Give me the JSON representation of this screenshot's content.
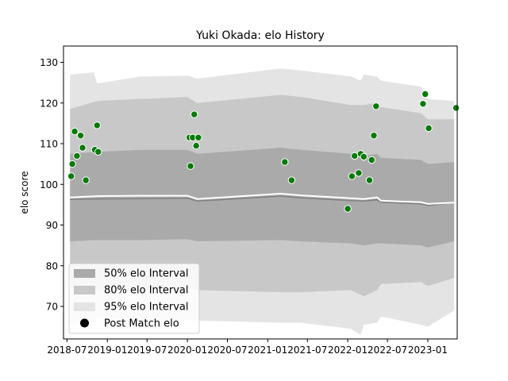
{
  "chart_data": {
    "type": "line",
    "title": "Yuki Okada: elo History",
    "xlabel": "",
    "ylabel": "elo score",
    "xlim": [
      "2018-06-15",
      "2023-05-15"
    ],
    "ylim": [
      62,
      134
    ],
    "x_ticks": [
      "2018-07",
      "2019-01",
      "2019-07",
      "2020-01",
      "2020-07",
      "2021-01",
      "2021-07",
      "2022-01",
      "2022-07",
      "2023-01"
    ],
    "y_ticks": [
      70,
      80,
      90,
      100,
      110,
      120,
      130
    ],
    "grid": false,
    "legend": {
      "placement": "lower-left",
      "entries": [
        {
          "label": "50% elo Interval",
          "color": "#aaaaaa"
        },
        {
          "label": "80% elo Interval",
          "color": "#c8c8c8"
        },
        {
          "label": "95% elo Interval",
          "color": "#e4e4e4"
        },
        {
          "label": "Post Match elo",
          "color": "#000000"
        }
      ]
    },
    "colors": {
      "band_50": "#aaaaaa",
      "band_80": "#c8c8c8",
      "band_95": "#e4e4e4",
      "mean_line": "#808080",
      "median_line": "#ffffff",
      "point_fill": "#007a00",
      "point_edge": "#ffffff"
    },
    "series": [
      {
        "name": "mean",
        "x": [
          "2018-07-15",
          "2018-11-15",
          "2019-06-01",
          "2020-01-01",
          "2020-02-15",
          "2021-03-01",
          "2021-06-01",
          "2022-01-15",
          "2022-03-15",
          "2022-05-15",
          "2022-06-01",
          "2022-12-01",
          "2023-01-01",
          "2023-05-01"
        ],
        "values": [
          96.3,
          96.4,
          96.5,
          96.6,
          95.9,
          97.1,
          96.7,
          96.0,
          95.9,
          96.2,
          95.6,
          95.2,
          94.8,
          95.5
        ]
      },
      {
        "name": "median",
        "x": [
          "2018-07-15",
          "2018-11-15",
          "2019-06-01",
          "2020-01-01",
          "2020-02-15",
          "2021-03-01",
          "2021-06-01",
          "2022-01-15",
          "2022-03-15",
          "2022-05-15",
          "2022-06-01",
          "2022-12-01",
          "2023-01-01",
          "2023-05-01"
        ],
        "values": [
          96.8,
          97.1,
          97.2,
          97.2,
          96.4,
          97.7,
          97.3,
          96.6,
          96.4,
          96.8,
          96.0,
          95.6,
          95.2,
          95.5
        ]
      }
    ],
    "bands": [
      {
        "level": "95%",
        "x": [
          "2018-07-15",
          "2018-11-01",
          "2018-11-15",
          "2019-06-01",
          "2020-01-01",
          "2020-02-15",
          "2021-03-01",
          "2021-06-01",
          "2022-01-15",
          "2022-03-01",
          "2022-03-15",
          "2022-05-15",
          "2022-06-01",
          "2022-12-01",
          "2023-01-01",
          "2023-05-01"
        ],
        "upper": [
          127.0,
          127.5,
          124.8,
          126.5,
          126.7,
          126.0,
          128.5,
          128.0,
          126.5,
          125.5,
          127.0,
          126.5,
          125.5,
          124.0,
          121.0,
          120.5
        ],
        "lower": [
          65.5,
          66.0,
          67.5,
          66.5,
          66.5,
          66.5,
          66.0,
          66.0,
          64.5,
          63.0,
          65.5,
          66.0,
          67.5,
          65.5,
          65.0,
          69.0
        ]
      },
      {
        "level": "80%",
        "x": [
          "2018-07-15",
          "2018-11-15",
          "2019-06-01",
          "2020-01-01",
          "2020-02-15",
          "2021-03-01",
          "2021-06-01",
          "2022-01-15",
          "2022-03-15",
          "2022-05-15",
          "2022-06-01",
          "2022-12-01",
          "2023-01-01",
          "2023-05-01"
        ],
        "upper": [
          118.5,
          120.5,
          121.0,
          121.5,
          120.0,
          122.0,
          121.5,
          119.5,
          119.5,
          120.0,
          119.0,
          117.5,
          116.0,
          116.0
        ],
        "lower": [
          75.0,
          74.0,
          74.0,
          74.5,
          74.0,
          73.5,
          73.5,
          74.0,
          72.5,
          74.0,
          75.5,
          76.0,
          75.0,
          77.0
        ]
      },
      {
        "level": "50%",
        "x": [
          "2018-07-15",
          "2018-11-15",
          "2019-06-01",
          "2020-01-01",
          "2020-02-15",
          "2021-03-01",
          "2021-06-01",
          "2022-01-15",
          "2022-03-15",
          "2022-05-15",
          "2022-06-01",
          "2022-12-01",
          "2023-01-01",
          "2023-05-01"
        ],
        "upper": [
          107.5,
          108.0,
          108.5,
          108.5,
          107.5,
          109.0,
          108.5,
          107.5,
          107.0,
          107.5,
          106.5,
          106.0,
          105.0,
          105.5
        ],
        "lower": [
          86.0,
          86.3,
          86.3,
          86.5,
          86.0,
          86.3,
          86.0,
          85.5,
          85.0,
          85.5,
          85.5,
          85.0,
          84.5,
          86.0
        ]
      }
    ],
    "points": {
      "name": "Post Match elo",
      "x": [
        "2018-07-20",
        "2018-07-25",
        "2018-08-05",
        "2018-08-15",
        "2018-09-01",
        "2018-09-10",
        "2018-09-25",
        "2018-11-05",
        "2018-11-15",
        "2018-11-20",
        "2020-01-10",
        "2020-01-15",
        "2020-01-25",
        "2020-02-01",
        "2020-02-10",
        "2020-02-20",
        "2021-03-20",
        "2021-04-20",
        "2022-01-01",
        "2022-01-20",
        "2022-02-01",
        "2022-02-20",
        "2022-03-01",
        "2022-03-15",
        "2022-04-10",
        "2022-04-20",
        "2022-04-30",
        "2022-05-10",
        "2022-12-10",
        "2022-12-20",
        "2023-01-05",
        "2023-05-10"
      ],
      "values": [
        102.0,
        105.0,
        113.0,
        107.0,
        112.0,
        109.0,
        101.0,
        108.5,
        114.5,
        108.0,
        111.5,
        104.5,
        111.5,
        117.2,
        109.5,
        111.5,
        105.5,
        101.0,
        94.0,
        102.0,
        107.0,
        102.8,
        107.5,
        106.8,
        101.0,
        106.0,
        112.0,
        119.2,
        119.8,
        122.2,
        113.8,
        118.8
      ]
    }
  }
}
